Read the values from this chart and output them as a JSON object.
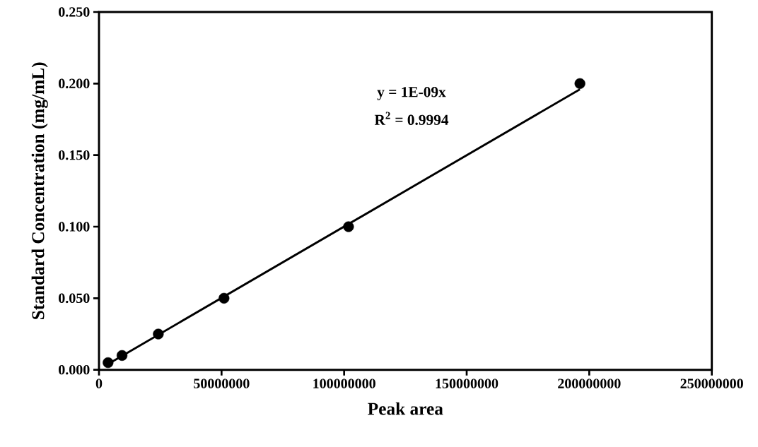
{
  "chart_data": {
    "type": "scatter",
    "xlabel": "Peak area",
    "ylabel": "Standard Concentration (mg/mL)",
    "annotations": [
      "y = 1E-09x",
      "R$^{2}$ = 0.9994"
    ],
    "marker": "circle",
    "series": [
      {
        "color": "#000000",
        "x": [
          3700000,
          9400000,
          24200000,
          51000000,
          101800000,
          196200000
        ],
        "values": [
          0.005,
          0.01,
          0.025,
          0.05,
          0.1,
          0.2
        ]
      },
      {
        "type": "line",
        "color": "#000000",
        "marker": "none",
        "x": [
          3700000,
          196200000
        ],
        "values": [
          0.004,
          0.196
        ]
      }
    ],
    "xlim": [
      0,
      250000000
    ],
    "ylim": [
      0,
      0.25
    ],
    "xticks": [
      0,
      50000000,
      100000000,
      150000000,
      200000000,
      250000000
    ],
    "yticks": [
      {
        "value": 0,
        "label": "0.000"
      },
      {
        "value": 0.05,
        "label": "0.050"
      },
      {
        "value": 0.1,
        "label": "0.100"
      },
      {
        "value": 0.15,
        "label": "0.150"
      },
      {
        "value": 0.2,
        "label": "0.200"
      },
      {
        "value": 0.25,
        "label": "0.250"
      }
    ]
  }
}
